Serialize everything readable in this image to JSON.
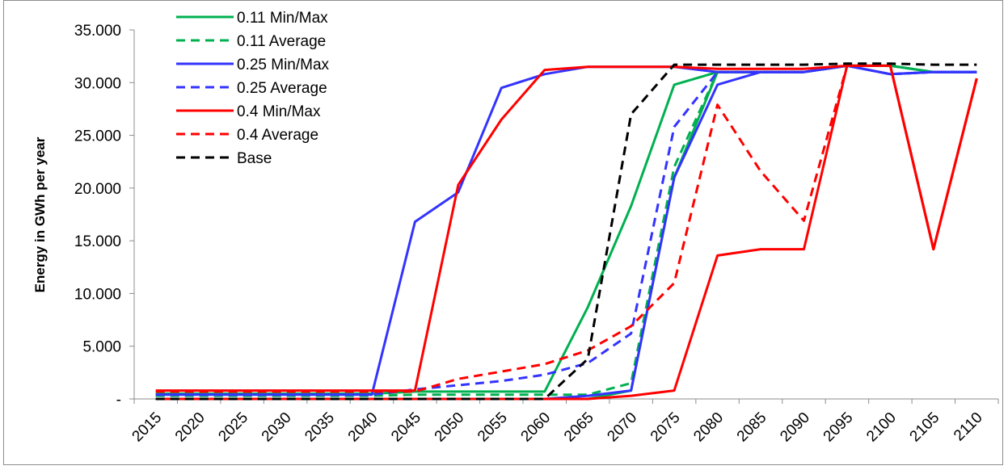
{
  "chart_data": {
    "type": "line",
    "title": "",
    "xlabel": "",
    "ylabel": "Energy in GWh per year",
    "x": [
      "2015",
      "2020",
      "2025",
      "2030",
      "2035",
      "2040",
      "2045",
      "2050",
      "2055",
      "2060",
      "2065",
      "2070",
      "2075",
      "2080",
      "2085",
      "2090",
      "2095",
      "2100",
      "2105",
      "2110"
    ],
    "ylim": [
      0,
      35000
    ],
    "yticks": [
      {
        "value": 0,
        "label": "-"
      },
      {
        "value": 5000,
        "label": "5.000"
      },
      {
        "value": 10000,
        "label": "10.000"
      },
      {
        "value": 15000,
        "label": "15.000"
      },
      {
        "value": 20000,
        "label": "20.000"
      },
      {
        "value": 25000,
        "label": "25.000"
      },
      {
        "value": 30000,
        "label": "30.000"
      },
      {
        "value": 35000,
        "label": "35.000"
      }
    ],
    "grid": false,
    "legend_position": "top-left",
    "series": [
      {
        "name": "0.11 Min/Max",
        "color": "#00b050",
        "dash": "solid",
        "values": [
          500,
          500,
          500,
          500,
          500,
          500,
          700,
          700,
          700,
          700,
          8700,
          18300,
          29800,
          31000,
          31000,
          31000,
          31600,
          31600,
          31000,
          31000
        ]
      },
      {
        "name": "0.11 Min/Max",
        "color": "#00b050",
        "dash": "solid",
        "legend": false,
        "values": [
          0,
          0,
          0,
          0,
          0,
          0,
          0,
          0,
          0,
          0,
          0,
          800,
          21000,
          31000,
          31000,
          31000,
          31600,
          31600,
          31000,
          31000
        ]
      },
      {
        "name": "0.11 Average",
        "color": "#00b050",
        "dash": "dashed",
        "values": [
          300,
          300,
          300,
          300,
          300,
          300,
          400,
          400,
          400,
          400,
          400,
          1500,
          22000,
          31000,
          31000,
          31000,
          31600,
          31600,
          31000,
          31000
        ]
      },
      {
        "name": "0.25 Min/Max",
        "color": "#3333ff",
        "dash": "solid",
        "values": [
          400,
          400,
          400,
          400,
          400,
          400,
          16800,
          19600,
          29500,
          30800,
          31500,
          31500,
          31500,
          31000,
          31000,
          31000,
          31600,
          30800,
          31000,
          31000
        ]
      },
      {
        "name": "0.25 Min/Max",
        "color": "#3333ff",
        "dash": "solid",
        "legend": false,
        "values": [
          0,
          0,
          0,
          0,
          0,
          0,
          0,
          0,
          0,
          0,
          300,
          800,
          21000,
          29800,
          31000,
          31000,
          31600,
          30800,
          31000,
          31000
        ]
      },
      {
        "name": "0.25 Average",
        "color": "#3333ff",
        "dash": "dashed",
        "values": [
          400,
          400,
          400,
          400,
          400,
          400,
          900,
          1300,
          1700,
          2300,
          3400,
          6200,
          25800,
          31000,
          31000,
          31000,
          31600,
          30800,
          31000,
          31000
        ]
      },
      {
        "name": "0.4 Min/Max",
        "color": "#ff0000",
        "dash": "solid",
        "values": [
          800,
          800,
          800,
          800,
          800,
          800,
          800,
          20300,
          26500,
          31200,
          31500,
          31500,
          31500,
          31300,
          31300,
          31300,
          31600,
          31600,
          14200,
          30400
        ]
      },
      {
        "name": "0.4 Min/Max",
        "color": "#ff0000",
        "dash": "solid",
        "legend": false,
        "values": [
          0,
          0,
          0,
          0,
          0,
          0,
          0,
          0,
          0,
          0,
          0,
          300,
          800,
          13600,
          14200,
          14200,
          31600,
          31600,
          14200,
          30400
        ]
      },
      {
        "name": "0.4 Average",
        "color": "#ff0000",
        "dash": "dashed",
        "values": [
          700,
          700,
          700,
          700,
          700,
          700,
          700,
          1900,
          2600,
          3300,
          4600,
          6900,
          11000,
          27900,
          21600,
          16900,
          31600,
          31600,
          14200,
          30400
        ]
      },
      {
        "name": "Base",
        "color": "#000000",
        "dash": "dashed",
        "values": [
          0,
          0,
          0,
          0,
          0,
          0,
          0,
          0,
          0,
          0,
          3800,
          27000,
          31700,
          31700,
          31700,
          31700,
          31800,
          31800,
          31700,
          31700
        ]
      }
    ]
  }
}
